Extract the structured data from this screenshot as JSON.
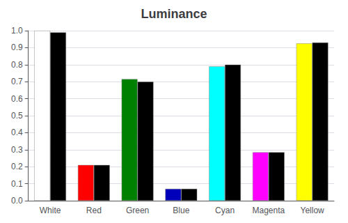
{
  "chart_data": {
    "type": "bar",
    "title": "Luminance",
    "categories": [
      "White",
      "Red",
      "Green",
      "Blue",
      "Cyan",
      "Magenta",
      "Yellow"
    ],
    "series": [
      {
        "colors": [
          "#ffffff",
          "#ff0000",
          "#008000",
          "#0000bb",
          "#00ffff",
          "#ff00ff",
          "#ffff00"
        ],
        "values": [
          1.0,
          0.21,
          0.715,
          0.07,
          0.79,
          0.285,
          0.925
        ]
      },
      {
        "color": "#000000",
        "values": [
          0.99,
          0.21,
          0.7,
          0.07,
          0.8,
          0.285,
          0.93
        ]
      }
    ],
    "ylim": [
      0.0,
      1.0
    ],
    "yticks": [
      {
        "value": 0.0,
        "label": "0.0"
      },
      0.1,
      0.2,
      0.3,
      0.4,
      0.5,
      0.6,
      0.7,
      0.8,
      0.9,
      {
        "value": 1.0,
        "label": "1.0"
      }
    ],
    "grid": true
  }
}
